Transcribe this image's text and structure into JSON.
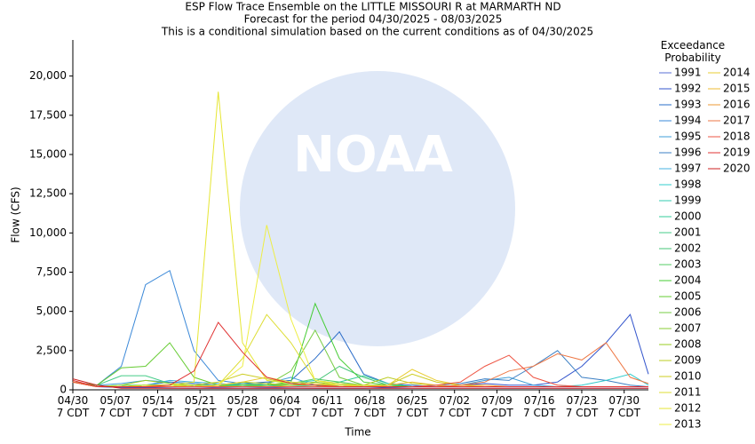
{
  "chart_data": {
    "type": "line",
    "title": "ESP Flow Trace Ensemble on the LITTLE MISSOURI R at MARMARTH ND",
    "subtitles": [
      "Forecast for the period 04/30/2025 - 08/03/2025",
      "This is a conditional simulation based on the current conditions as of 04/30/2025"
    ],
    "watermark": "NOAA",
    "x_label": "Time",
    "y_label": "Flow (CFS)",
    "legend_title": "Exceedance Probability",
    "grid": false,
    "xlim": [
      0,
      95
    ],
    "xticks": [
      {
        "value": 0,
        "label": "04/30 7 CDT"
      },
      {
        "value": 7,
        "label": "05/07 7 CDT"
      },
      {
        "value": 14,
        "label": "05/14 7 CDT"
      },
      {
        "value": 21,
        "label": "05/21 7 CDT"
      },
      {
        "value": 28,
        "label": "05/28 7 CDT"
      },
      {
        "value": 35,
        "label": "06/04 7 CDT"
      },
      {
        "value": 42,
        "label": "06/11 7 CDT"
      },
      {
        "value": 49,
        "label": "06/18 7 CDT"
      },
      {
        "value": 56,
        "label": "06/25 7 CDT"
      },
      {
        "value": 63,
        "label": "07/02 7 CDT"
      },
      {
        "value": 70,
        "label": "07/09 7 CDT"
      },
      {
        "value": 77,
        "label": "07/16 7 CDT"
      },
      {
        "value": 84,
        "label": "07/23 7 CDT"
      },
      {
        "value": 91,
        "label": "07/30 7 CDT"
      }
    ],
    "ylim": [
      0,
      22300
    ],
    "yticks": [
      0,
      {
        "value": 2500,
        "label": "2,500"
      },
      {
        "value": 5000,
        "label": "5,000"
      },
      {
        "value": 7500,
        "label": "7,500"
      },
      {
        "value": 10000,
        "label": "10,000"
      },
      {
        "value": 12500,
        "label": "12,500"
      },
      {
        "value": 15000,
        "label": "15,000"
      },
      {
        "value": 17500,
        "label": "17,500"
      },
      {
        "value": 20000,
        "label": "20,000"
      }
    ],
    "x": [
      0,
      4,
      8,
      12,
      16,
      20,
      24,
      28,
      32,
      36,
      40,
      44,
      48,
      52,
      56,
      60,
      64,
      68,
      72,
      76,
      80,
      84,
      88,
      92,
      95
    ],
    "series": [
      {
        "name": "1991",
        "color": "#5a6fd6",
        "values": [
          500,
          200,
          150,
          120,
          100,
          100,
          150,
          200,
          150,
          120,
          100,
          100,
          100,
          100,
          100,
          100,
          100,
          100,
          100,
          100,
          100,
          100,
          100,
          100,
          100
        ]
      },
      {
        "name": "1992",
        "color": "#3355cc",
        "values": [
          500,
          200,
          150,
          150,
          120,
          100,
          100,
          100,
          100,
          100,
          100,
          100,
          100,
          150,
          200,
          200,
          300,
          400,
          300,
          300,
          500,
          1500,
          3000,
          4800,
          1000
        ]
      },
      {
        "name": "1993",
        "color": "#2a6cc8",
        "values": [
          500,
          200,
          200,
          300,
          300,
          200,
          200,
          400,
          500,
          600,
          2000,
          3700,
          1000,
          400,
          300,
          200,
          200,
          200,
          200,
          200,
          200,
          200,
          200,
          200,
          200
        ]
      },
      {
        "name": "1994",
        "color": "#3a88d8",
        "values": [
          500,
          300,
          1500,
          6700,
          7600,
          2500,
          600,
          400,
          300,
          300,
          300,
          300,
          200,
          200,
          200,
          200,
          200,
          200,
          200,
          200,
          200,
          200,
          200,
          200,
          200
        ]
      },
      {
        "name": "1995",
        "color": "#3f9fd8",
        "values": [
          500,
          300,
          400,
          600,
          500,
          400,
          300,
          300,
          400,
          800,
          300,
          200,
          200,
          200,
          200,
          200,
          300,
          600,
          800,
          300,
          200,
          200,
          200,
          200,
          200
        ]
      },
      {
        "name": "1996",
        "color": "#3b7fc4",
        "values": [
          500,
          200,
          200,
          300,
          500,
          400,
          300,
          300,
          300,
          300,
          300,
          200,
          200,
          200,
          200,
          300,
          400,
          700,
          600,
          1500,
          2500,
          800,
          600,
          300,
          200
        ]
      },
      {
        "name": "1997",
        "color": "#44b0e0",
        "values": [
          500,
          200,
          200,
          300,
          600,
          500,
          400,
          300,
          300,
          300,
          300,
          300,
          200,
          200,
          200,
          200,
          200,
          200,
          200,
          200,
          200,
          200,
          200,
          200,
          200
        ]
      },
      {
        "name": "1998",
        "color": "#33cccc",
        "values": [
          500,
          200,
          200,
          200,
          200,
          200,
          200,
          200,
          200,
          200,
          300,
          300,
          300,
          300,
          200,
          200,
          200,
          200,
          200,
          200,
          200,
          300,
          600,
          1000,
          300
        ]
      },
      {
        "name": "1999",
        "color": "#33ccb0",
        "values": [
          500,
          200,
          200,
          300,
          300,
          200,
          200,
          200,
          300,
          400,
          600,
          400,
          300,
          200,
          200,
          200,
          200,
          200,
          200,
          200,
          200,
          200,
          200,
          200,
          200
        ]
      },
      {
        "name": "2000",
        "color": "#33cc99",
        "values": [
          500,
          200,
          200,
          300,
          300,
          200,
          300,
          300,
          200,
          200,
          200,
          500,
          900,
          400,
          200,
          200,
          200,
          200,
          200,
          200,
          200,
          200,
          200,
          200,
          200
        ]
      },
      {
        "name": "2001",
        "color": "#44cc88",
        "values": [
          500,
          300,
          900,
          900,
          400,
          300,
          300,
          200,
          200,
          200,
          200,
          200,
          200,
          200,
          200,
          200,
          200,
          200,
          200,
          200,
          200,
          200,
          200,
          200,
          200
        ]
      },
      {
        "name": "2002",
        "color": "#44c477",
        "values": [
          500,
          200,
          200,
          200,
          200,
          200,
          300,
          400,
          300,
          300,
          500,
          1500,
          800,
          300,
          200,
          200,
          200,
          200,
          200,
          200,
          200,
          200,
          200,
          200,
          200
        ]
      },
      {
        "name": "2003",
        "color": "#55cc66",
        "values": [
          500,
          200,
          300,
          300,
          300,
          200,
          200,
          200,
          300,
          400,
          700,
          500,
          300,
          200,
          200,
          200,
          200,
          200,
          200,
          200,
          200,
          200,
          200,
          200,
          200
        ]
      },
      {
        "name": "2004",
        "color": "#44cc33",
        "values": [
          500,
          200,
          200,
          300,
          300,
          200,
          200,
          300,
          300,
          500,
          5500,
          2000,
          500,
          300,
          200,
          200,
          200,
          200,
          200,
          200,
          200,
          200,
          200,
          200,
          200
        ]
      },
      {
        "name": "2005",
        "color": "#66cc33",
        "values": [
          500,
          300,
          1400,
          1500,
          3000,
          800,
          300,
          200,
          200,
          200,
          200,
          200,
          200,
          200,
          200,
          200,
          200,
          200,
          200,
          200,
          200,
          200,
          200,
          200,
          200
        ]
      },
      {
        "name": "2006",
        "color": "#77cc44",
        "values": [
          500,
          200,
          200,
          300,
          300,
          200,
          200,
          300,
          300,
          1200,
          3800,
          800,
          300,
          200,
          200,
          200,
          200,
          200,
          200,
          200,
          200,
          200,
          200,
          200,
          200
        ]
      },
      {
        "name": "2007",
        "color": "#88cc33",
        "values": [
          500,
          200,
          200,
          300,
          300,
          200,
          200,
          200,
          200,
          300,
          500,
          300,
          200,
          200,
          200,
          200,
          200,
          200,
          200,
          200,
          200,
          200,
          200,
          200,
          200
        ]
      },
      {
        "name": "2008",
        "color": "#99cc22",
        "values": [
          500,
          200,
          300,
          600,
          400,
          300,
          200,
          200,
          200,
          200,
          200,
          200,
          200,
          200,
          200,
          200,
          200,
          200,
          200,
          200,
          200,
          200,
          200,
          200,
          200
        ]
      },
      {
        "name": "2009",
        "color": "#bbcc22",
        "values": [
          500,
          200,
          200,
          200,
          200,
          200,
          300,
          500,
          400,
          300,
          300,
          300,
          300,
          800,
          400,
          300,
          200,
          200,
          200,
          200,
          200,
          200,
          200,
          200,
          200
        ]
      },
      {
        "name": "2010",
        "color": "#cccc22",
        "values": [
          500,
          200,
          200,
          300,
          300,
          300,
          500,
          1000,
          700,
          400,
          300,
          300,
          300,
          300,
          1000,
          500,
          300,
          200,
          200,
          200,
          200,
          200,
          200,
          200,
          200
        ]
      },
      {
        "name": "2011",
        "color": "#dddd33",
        "values": [
          500,
          200,
          200,
          300,
          300,
          200,
          300,
          2000,
          4800,
          3000,
          600,
          400,
          300,
          200,
          200,
          200,
          200,
          200,
          200,
          200,
          200,
          200,
          200,
          200,
          200
        ]
      },
      {
        "name": "2012",
        "color": "#e6e633",
        "values": [
          500,
          200,
          200,
          200,
          300,
          500,
          19000,
          3000,
          600,
          400,
          300,
          200,
          200,
          200,
          200,
          200,
          200,
          200,
          200,
          200,
          200,
          200,
          200,
          200,
          200
        ]
      },
      {
        "name": "2013",
        "color": "#eeee44",
        "values": [
          500,
          200,
          200,
          200,
          200,
          200,
          300,
          1500,
          10500,
          4500,
          600,
          300,
          200,
          200,
          200,
          200,
          200,
          200,
          200,
          200,
          200,
          200,
          200,
          200,
          200
        ]
      },
      {
        "name": "2014",
        "color": "#e8cc33",
        "values": [
          500,
          200,
          200,
          200,
          200,
          200,
          300,
          500,
          800,
          500,
          400,
          300,
          200,
          300,
          1300,
          600,
          300,
          200,
          200,
          200,
          200,
          200,
          200,
          200,
          200
        ]
      },
      {
        "name": "2015",
        "color": "#eebb33",
        "values": [
          500,
          200,
          200,
          200,
          200,
          200,
          200,
          200,
          200,
          200,
          200,
          200,
          200,
          300,
          500,
          300,
          200,
          200,
          200,
          200,
          200,
          200,
          200,
          200,
          200
        ]
      },
      {
        "name": "2016",
        "color": "#ee9933",
        "values": [
          500,
          200,
          200,
          200,
          200,
          200,
          200,
          200,
          200,
          200,
          200,
          200,
          200,
          200,
          200,
          200,
          300,
          300,
          200,
          200,
          200,
          200,
          200,
          200,
          200
        ]
      },
      {
        "name": "2017",
        "color": "#ee7744",
        "values": [
          500,
          200,
          200,
          200,
          200,
          200,
          200,
          200,
          200,
          200,
          200,
          200,
          200,
          200,
          200,
          200,
          300,
          500,
          1200,
          1500,
          2300,
          1900,
          3000,
          800,
          400
        ]
      },
      {
        "name": "2018",
        "color": "#ee5544",
        "values": [
          500,
          200,
          200,
          200,
          200,
          200,
          200,
          200,
          200,
          200,
          200,
          200,
          200,
          200,
          200,
          300,
          500,
          1500,
          2200,
          800,
          300,
          200,
          200,
          200,
          200
        ]
      },
      {
        "name": "2019",
        "color": "#e03333",
        "values": [
          600,
          200,
          200,
          200,
          300,
          1200,
          4300,
          2400,
          800,
          400,
          300,
          200,
          200,
          200,
          200,
          200,
          200,
          200,
          200,
          200,
          200,
          200,
          200,
          200,
          200
        ]
      },
      {
        "name": "2020",
        "color": "#cc2222",
        "values": [
          700,
          300,
          100,
          100,
          100,
          100,
          100,
          100,
          100,
          100,
          100,
          100,
          100,
          100,
          100,
          100,
          100,
          100,
          100,
          100,
          100,
          100,
          100,
          100,
          100
        ]
      }
    ]
  }
}
